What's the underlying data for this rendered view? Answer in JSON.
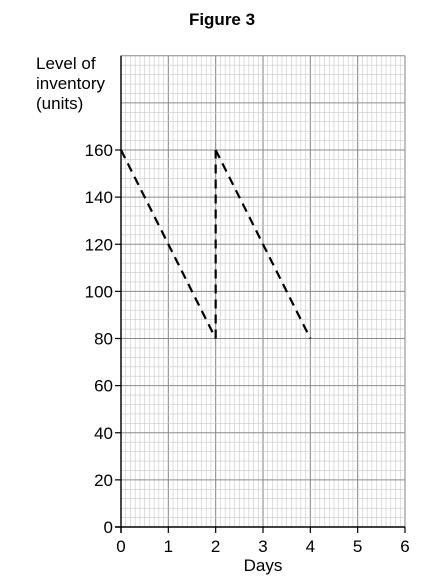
{
  "chart_data": {
    "type": "line",
    "title": "Figure 3",
    "xlabel": "Days",
    "ylabel_lines": [
      "Level of",
      "inventory",
      "(units)"
    ],
    "xlim": [
      0,
      6
    ],
    "ylim": [
      0,
      160
    ],
    "ymax_grid": 200,
    "x_ticks": [
      0,
      1,
      2,
      3,
      4,
      5,
      6
    ],
    "y_ticks": [
      0,
      20,
      40,
      60,
      80,
      100,
      120,
      140,
      160
    ],
    "grid": true,
    "series": [
      {
        "style": "dashed",
        "points": [
          {
            "x": 0,
            "y": 160
          },
          {
            "x": 2,
            "y": 80
          },
          {
            "x": 2,
            "y": 160
          },
          {
            "x": 4,
            "y": 80
          }
        ]
      }
    ]
  }
}
